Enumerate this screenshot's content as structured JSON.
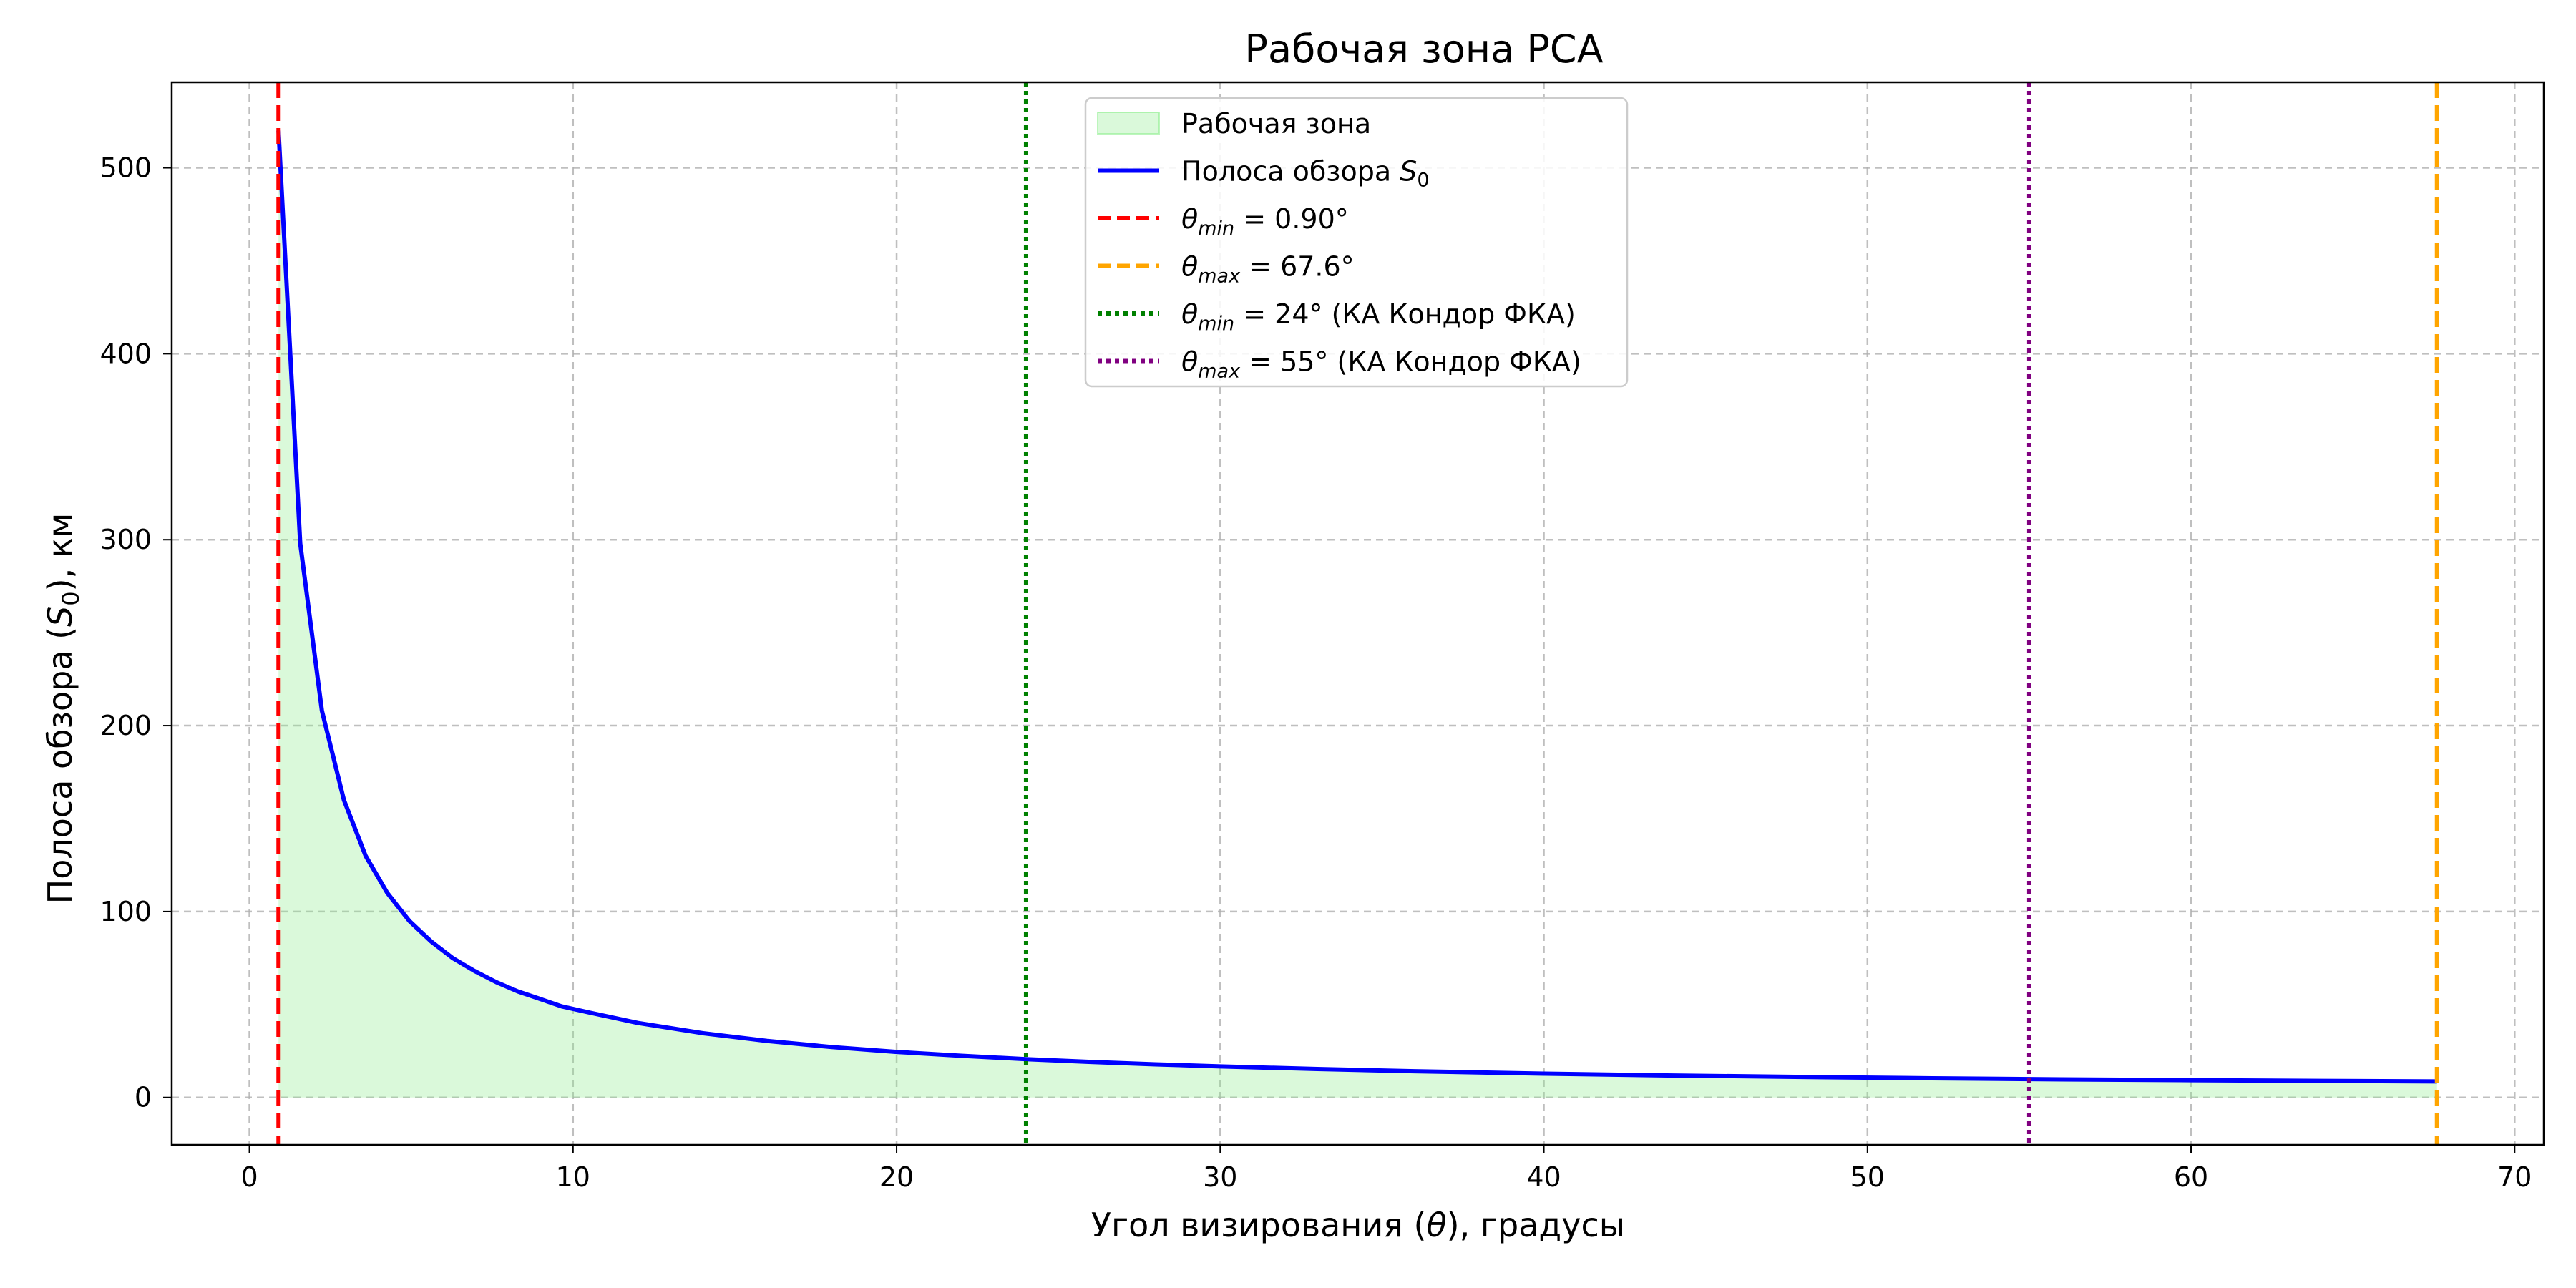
{
  "chart_data": {
    "type": "line",
    "title": "Рабочая зона РСА",
    "xlabel": "Угол визирования (θ), градусы",
    "ylabel": "Полоса обзора (S0), км",
    "xlim": [
      -2.4,
      70.9
    ],
    "ylim": [
      -25.5,
      546
    ],
    "xticks": [
      0,
      10,
      20,
      30,
      40,
      50,
      60,
      70
    ],
    "yticks": [
      0,
      100,
      200,
      300,
      400,
      500
    ],
    "grid": true,
    "legend_position": "upper-center",
    "series": [
      {
        "name": "Полоса обзора S0",
        "color": "#0000ff",
        "x": [
          0.9,
          1.57,
          2.24,
          2.92,
          3.59,
          4.26,
          4.94,
          5.61,
          6.28,
          6.96,
          7.63,
          8.3,
          8.98,
          9.65,
          10.5,
          12,
          14,
          16,
          18,
          20,
          22,
          24,
          26,
          28,
          30,
          33,
          36,
          40,
          44,
          48,
          52,
          56,
          60,
          64,
          67.6
        ],
        "y": [
          520,
          298,
          208,
          160,
          130,
          110,
          95,
          84,
          75,
          68,
          62,
          57,
          53,
          49,
          45.7,
          40.1,
          34.6,
          30.4,
          27.1,
          24.5,
          22.4,
          20.6,
          19.1,
          17.8,
          16.7,
          15.3,
          14.1,
          12.8,
          11.8,
          11.0,
          10.3,
          9.7,
          9.3,
          8.9,
          8.6
        ]
      }
    ],
    "fill": {
      "name": "Рабочая зона",
      "color": "#90ee90",
      "x_range": [
        0.9,
        67.6
      ]
    },
    "vlines": [
      {
        "label_math": "θmin = 0.90°",
        "sym": "θ",
        "sub": "min",
        "rest": " = 0.90°",
        "x": 0.9,
        "color": "#ff0000",
        "style": "dashed"
      },
      {
        "label_math": "θmax = 67.6°",
        "sym": "θ",
        "sub": "max",
        "rest": " = 67.6°",
        "x": 67.6,
        "color": "#ffa500",
        "style": "dashed"
      },
      {
        "label_math": "θmin = 24° (КА Кондор ФКА)",
        "sym": "θ",
        "sub": "min",
        "rest": " = 24° (КА Кондор ФКА)",
        "x": 24,
        "color": "#008000",
        "style": "dotted"
      },
      {
        "label_math": "θmax = 55° (КА Кондор ФКА)",
        "sym": "θ",
        "sub": "max",
        "rest": " = 55° (КА Кондор ФКА)",
        "x": 55,
        "color": "#800080",
        "style": "dotted"
      }
    ]
  }
}
